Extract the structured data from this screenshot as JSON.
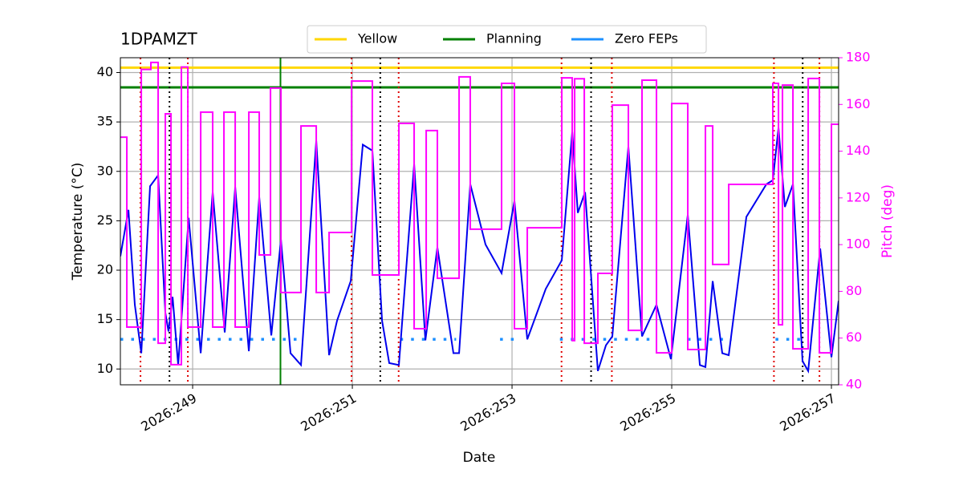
{
  "chart_data": {
    "type": "line",
    "title": "1DPAMZT",
    "xlabel": "Date",
    "ylabel": "Temperature (°C)",
    "y2label": "Pitch (deg)",
    "y2color": "#ff00ff",
    "xlim": [
      248.095,
      257.09
    ],
    "xticks": [
      {
        "value": 249,
        "label": "2026:249"
      },
      {
        "value": 251,
        "label": "2026:251"
      },
      {
        "value": 253,
        "label": "2026:253"
      },
      {
        "value": 255,
        "label": "2026:255"
      },
      {
        "value": 257,
        "label": "2026:257"
      }
    ],
    "ylim": [
      8.4,
      41.5
    ],
    "yticks": [
      10,
      15,
      20,
      25,
      30,
      35,
      40
    ],
    "y2lim": [
      40,
      180
    ],
    "y2ticks": [
      40,
      60,
      80,
      100,
      120,
      140,
      160,
      180
    ],
    "grid": true,
    "legend": "top",
    "hlines": [
      {
        "name": "Yellow",
        "color": "#ffd700",
        "value": 40.5
      },
      {
        "name": "Planning",
        "color": "#008000",
        "value": 38.5
      }
    ],
    "vlines": [
      {
        "color": "#e00000",
        "style": "dotted",
        "x": [
          248.347,
          248.94,
          250.99,
          251.58,
          253.62,
          254.25,
          256.28,
          256.85
        ]
      },
      {
        "color": "#000000",
        "style": "dotted",
        "x": [
          248.71,
          251.35,
          253.99,
          256.64
        ]
      },
      {
        "color": "#008000",
        "style": "solid",
        "x": [
          250.1
        ]
      }
    ],
    "series": [
      {
        "name": "Zero FEPs",
        "color": "#1e90ff",
        "style": "dotted",
        "x": [
          248.095,
          250.36,
          251.0,
          251.6,
          252.3,
          252.5,
          252.85,
          253.05,
          253.3,
          253.6,
          254.75,
          255.0,
          255.2,
          255.75,
          256.0,
          256.3,
          256.65
        ],
        "values": [
          13,
          13,
          null,
          13,
          13,
          null,
          13,
          13,
          null,
          13,
          13,
          null,
          13,
          13,
          null,
          13,
          13
        ]
      },
      {
        "color": "#0000ee",
        "style": "solid",
        "x": [
          248.095,
          248.196,
          248.276,
          248.357,
          248.467,
          248.568,
          248.658,
          248.698,
          248.749,
          248.819,
          248.95,
          249.101,
          249.251,
          249.402,
          249.533,
          249.704,
          249.834,
          249.985,
          250.106,
          250.226,
          250.357,
          250.548,
          250.709,
          250.809,
          250.98,
          251.131,
          251.251,
          251.372,
          251.462,
          251.583,
          251.774,
          251.915,
          252.065,
          252.266,
          252.337,
          252.477,
          252.668,
          252.869,
          253.03,
          253.191,
          253.422,
          253.623,
          253.754,
          253.824,
          253.915,
          254.075,
          254.176,
          254.256,
          254.457,
          254.628,
          254.809,
          254.99,
          255.201,
          255.352,
          255.422,
          255.513,
          255.633,
          255.714,
          255.935,
          256.186,
          256.266,
          256.337,
          256.417,
          256.518,
          256.638,
          256.709,
          256.859,
          257.0,
          257.09
        ],
        "values": [
          21.4,
          26.1,
          16.5,
          11.6,
          28.5,
          29.6,
          15.7,
          13.8,
          17.3,
          10.4,
          25.3,
          11.6,
          27.9,
          13.7,
          28.4,
          11.8,
          27.4,
          13.4,
          23.1,
          11.6,
          10.4,
          33.1,
          11.4,
          14.9,
          18.9,
          32.7,
          32.1,
          14.9,
          10.6,
          10.4,
          30.7,
          12.9,
          22.3,
          11.6,
          11.6,
          28.7,
          22.6,
          19.7,
          27.0,
          13.0,
          18.1,
          21.0,
          34.0,
          25.8,
          27.9,
          9.8,
          12.4,
          13.3,
          32.5,
          13.3,
          16.5,
          11.0,
          25.6,
          10.4,
          10.2,
          18.9,
          11.6,
          11.4,
          25.4,
          28.7,
          29.1,
          34.4,
          26.4,
          28.7,
          10.8,
          9.8,
          22.2,
          11.2,
          16.9
        ]
      },
      {
        "color": "#ff00ff",
        "style": "step",
        "axis": "y2",
        "x": [
          248.095,
          248.176,
          248.357,
          248.477,
          248.568,
          248.658,
          248.729,
          248.859,
          248.94,
          249.101,
          249.251,
          249.392,
          249.533,
          249.704,
          249.834,
          249.975,
          250.106,
          250.357,
          250.548,
          250.709,
          250.99,
          251.251,
          251.583,
          251.774,
          251.925,
          252.065,
          252.337,
          252.477,
          252.869,
          253.03,
          253.191,
          253.623,
          253.754,
          253.784,
          253.905,
          254.075,
          254.256,
          254.457,
          254.628,
          254.809,
          255.0,
          255.201,
          255.422,
          255.513,
          255.714,
          256.266,
          256.337,
          256.387,
          256.518,
          256.709,
          256.849,
          257.0
        ],
        "values": [
          146,
          64.7,
          175,
          178,
          57.8,
          156,
          48.6,
          176,
          64.7,
          156.7,
          64.7,
          156.7,
          64.7,
          156.7,
          95.6,
          167,
          79.5,
          150.8,
          79.5,
          105.2,
          170,
          87,
          151.9,
          64,
          148.8,
          85.6,
          171.8,
          106.6,
          169,
          64,
          107.2,
          171.4,
          58.9,
          171,
          57.8,
          87.7,
          159.7,
          63.3,
          170.4,
          53.7,
          160.4,
          55.1,
          150.8,
          91.5,
          125.8,
          169,
          65.7,
          168.3,
          55.4,
          171.1,
          53.7,
          151.5
        ]
      }
    ]
  }
}
